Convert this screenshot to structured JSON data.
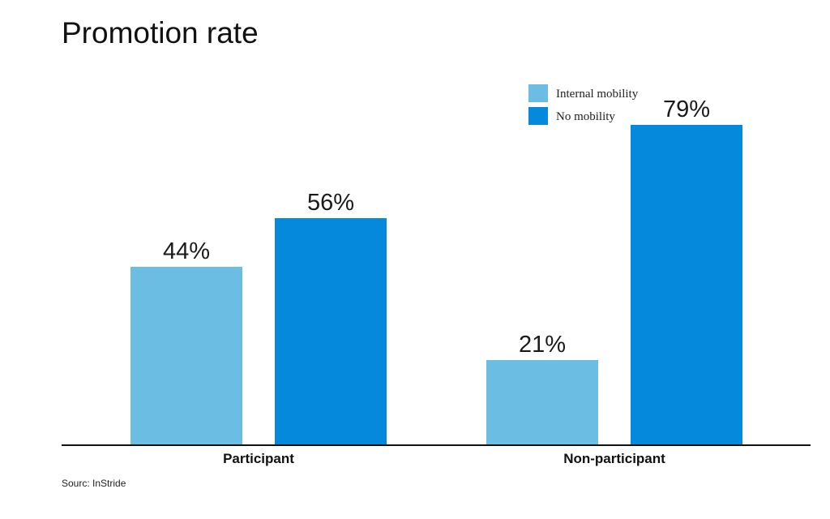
{
  "chart_data": {
    "type": "bar",
    "title": "Promotion rate",
    "categories": [
      "Participant",
      "Non-participant"
    ],
    "series": [
      {
        "name": "Internal mobility",
        "values": [
          44,
          21
        ],
        "value_labels": [
          "44%",
          "21%"
        ],
        "color": "#6cbde3"
      },
      {
        "name": "No mobility",
        "values": [
          56,
          79
        ],
        "value_labels": [
          "56%",
          "79%"
        ],
        "color": "#0589dc"
      }
    ],
    "xlabel": "",
    "ylabel": "",
    "ylim": [
      0,
      100
    ],
    "grid": false,
    "legend": "top-right",
    "axis_color": "#111111"
  },
  "source": "Sourc: InStride"
}
